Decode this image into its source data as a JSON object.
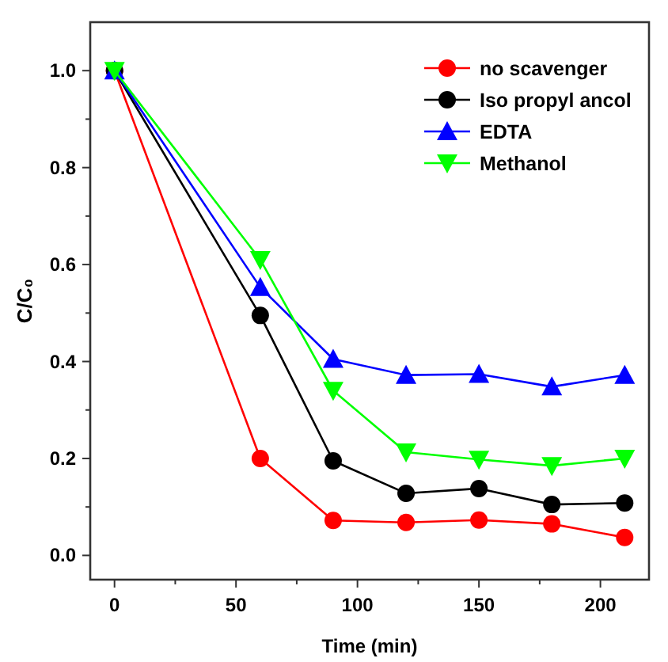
{
  "chart_data": {
    "type": "line",
    "xlabel": "Time (min)",
    "ylabel": "C/C₀",
    "x": [
      0,
      60,
      90,
      120,
      150,
      180,
      210
    ],
    "xlim": [
      -10,
      220
    ],
    "xticks": [
      0,
      50,
      100,
      150,
      200
    ],
    "ylim": [
      -0.05,
      1.1
    ],
    "yticks": [
      {
        "value": 0,
        "label": "0.0"
      },
      0.2,
      0.4,
      0.6,
      0.8,
      {
        "value": 1,
        "label": "1.0"
      }
    ],
    "legend": "top right",
    "grid": false,
    "line_style": "solid",
    "series": [
      {
        "name": "no scavenger",
        "color": "#ff0000",
        "marker": "circle",
        "values": [
          1.0,
          0.2,
          0.072,
          0.068,
          0.073,
          0.065,
          0.037
        ]
      },
      {
        "name": "Iso propyl ancol",
        "color": "#000000",
        "marker": "circle",
        "values": [
          1.0,
          0.495,
          0.195,
          0.128,
          0.138,
          0.105,
          0.108
        ]
      },
      {
        "name": "EDTA",
        "color": "#0000ff",
        "marker": "triangle",
        "values": [
          1.0,
          0.553,
          0.405,
          0.372,
          0.374,
          0.348,
          0.372
        ]
      },
      {
        "name": "Methanol",
        "color": "#00ff00",
        "marker": "triangle-down",
        "values": [
          1.0,
          0.61,
          0.34,
          0.213,
          0.198,
          0.185,
          0.2
        ]
      }
    ]
  }
}
